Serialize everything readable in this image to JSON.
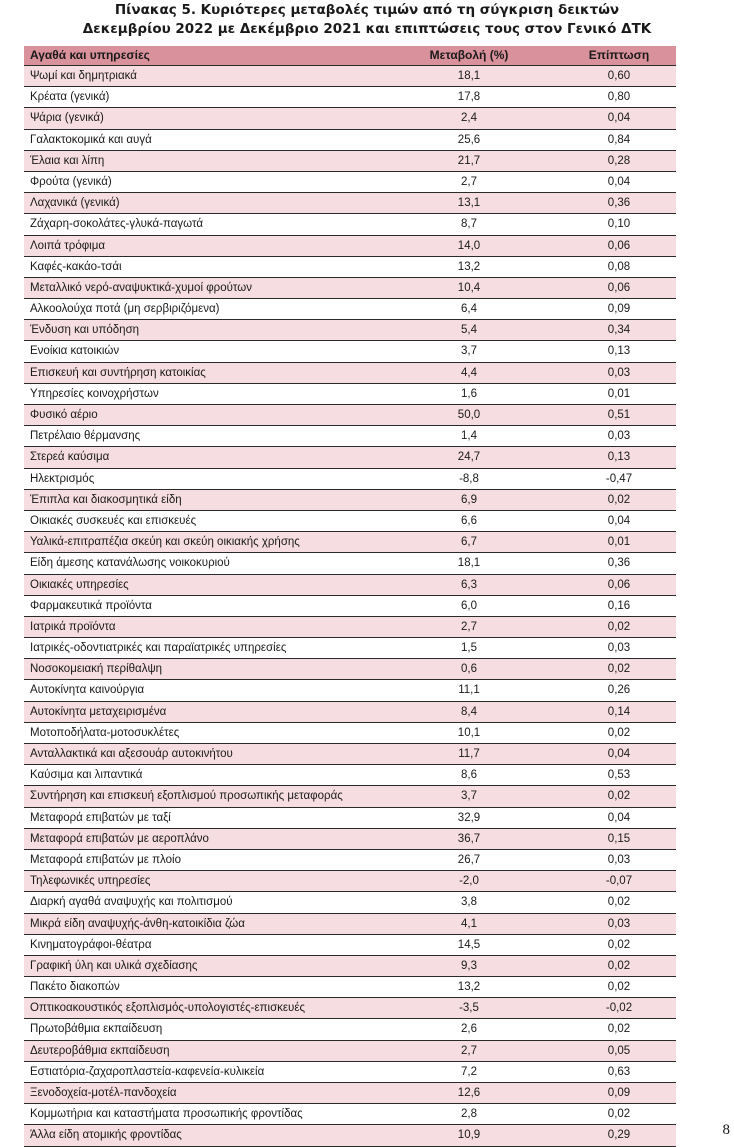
{
  "title_line1": "Πίνακας 5. Κυριότερες μεταβολές τιμών από τη σύγκριση δεικτών",
  "title_line2": "Δεκεμβρίου 2022 με Δεκέμβριο 2021 και επιπτώσεις τους στον Γενικό ΔΤΚ",
  "headers": {
    "name": "Αγαθά και υπηρεσίες",
    "change": "Μεταβολή (%)",
    "impact": "Επίπτωση"
  },
  "rows": [
    {
      "name": "Ψωμί και δημητριακά",
      "change": "18,1",
      "impact": "0,60"
    },
    {
      "name": "Κρέατα (γενικά)",
      "change": "17,8",
      "impact": "0,80"
    },
    {
      "name": "Ψάρια (γενικά)",
      "change": "2,4",
      "impact": "0,04"
    },
    {
      "name": "Γαλακτοκομικά και αυγά",
      "change": "25,6",
      "impact": "0,84"
    },
    {
      "name": "Έλαια και λίπη",
      "change": "21,7",
      "impact": "0,28"
    },
    {
      "name": "Φρούτα (γενικά)",
      "change": "2,7",
      "impact": "0,04"
    },
    {
      "name": "Λαχανικά (γενικά)",
      "change": "13,1",
      "impact": "0,36"
    },
    {
      "name": "Ζάχαρη-σοκολάτες-γλυκά-παγωτά",
      "change": "8,7",
      "impact": "0,10"
    },
    {
      "name": "Λοιπά τρόφιμα",
      "change": "14,0",
      "impact": "0,06"
    },
    {
      "name": "Καφές-κακάο-τσάι",
      "change": "13,2",
      "impact": "0,08"
    },
    {
      "name": "Μεταλλικό νερό-αναψυκτικά-χυμοί φρούτων",
      "change": "10,4",
      "impact": "0,06"
    },
    {
      "name": "Αλκοολούχα ποτά (μη σερβιριζόμενα)",
      "change": "6,4",
      "impact": "0,09"
    },
    {
      "name": "Ένδυση και υπόδηση",
      "change": "5,4",
      "impact": "0,34"
    },
    {
      "name": "Ενοίκια κατοικιών",
      "change": "3,7",
      "impact": "0,13"
    },
    {
      "name": "Επισκευή και συντήρηση κατοικίας",
      "change": "4,4",
      "impact": "0,03"
    },
    {
      "name": "Υπηρεσίες κοινοχρήστων",
      "change": "1,6",
      "impact": "0,01"
    },
    {
      "name": "Φυσικό αέριο",
      "change": "50,0",
      "impact": "0,51"
    },
    {
      "name": "Πετρέλαιο θέρμανσης",
      "change": "1,4",
      "impact": "0,03"
    },
    {
      "name": "Στερεά καύσιμα",
      "change": "24,7",
      "impact": "0,13"
    },
    {
      "name": "Ηλεκτρισμός",
      "change": "-8,8",
      "impact": "-0,47"
    },
    {
      "name": "Έπιπλα και διακοσμητικά είδη",
      "change": "6,9",
      "impact": "0,02"
    },
    {
      "name": "Οικιακές συσκευές και επισκευές",
      "change": "6,6",
      "impact": "0,04"
    },
    {
      "name": "Υαλικά-επιτραπέζια σκεύη και σκεύη οικιακής χρήσης",
      "change": "6,7",
      "impact": "0,01"
    },
    {
      "name": "Είδη άμεσης κατανάλωσης νοικοκυριού",
      "change": "18,1",
      "impact": "0,36"
    },
    {
      "name": "Οικιακές υπηρεσίες",
      "change": "6,3",
      "impact": "0,06"
    },
    {
      "name": "Φαρμακευτικά προϊόντα",
      "change": "6,0",
      "impact": "0,16"
    },
    {
      "name": "Ιατρικά προϊόντα",
      "change": "2,7",
      "impact": "0,02"
    },
    {
      "name": "Ιατρικές-οδοντιατρικές και παραϊατρικές υπηρεσίες",
      "change": "1,5",
      "impact": "0,03"
    },
    {
      "name": "Νοσοκομειακή περίθαλψη",
      "change": "0,6",
      "impact": "0,02"
    },
    {
      "name": "Αυτοκίνητα καινούργια",
      "change": "11,1",
      "impact": "0,26"
    },
    {
      "name": "Αυτοκίνητα μεταχειρισμένα",
      "change": "8,4",
      "impact": "0,14"
    },
    {
      "name": "Μοτοποδήλατα-μοτοσυκλέτες",
      "change": "10,1",
      "impact": "0,02"
    },
    {
      "name": "Ανταλλακτικά και αξεσουάρ αυτοκινήτου",
      "change": "11,7",
      "impact": "0,04"
    },
    {
      "name": "Καύσιμα και λιπαντικά",
      "change": "8,6",
      "impact": "0,53"
    },
    {
      "name": "Συντήρηση και επισκευή εξοπλισμού προσωπικής μεταφοράς",
      "change": "3,7",
      "impact": "0,02"
    },
    {
      "name": "Μεταφορά επιβατών με ταξί",
      "change": "32,9",
      "impact": "0,04"
    },
    {
      "name": "Μεταφορά επιβατών με αεροπλάνο",
      "change": "36,7",
      "impact": "0,15"
    },
    {
      "name": "Μεταφορά επιβατών με πλοίο",
      "change": "26,7",
      "impact": "0,03"
    },
    {
      "name": "Τηλεφωνικές υπηρεσίες",
      "change": "-2,0",
      "impact": "-0,07"
    },
    {
      "name": "Διαρκή αγαθά αναψυχής και πολιτισμού",
      "change": "3,8",
      "impact": "0,02"
    },
    {
      "name": "Μικρά είδη αναψυχής-άνθη-κατοικίδια ζώα",
      "change": "4,1",
      "impact": "0,03"
    },
    {
      "name": "Κινηματογράφοι-θέατρα",
      "change": "14,5",
      "impact": "0,02"
    },
    {
      "name": "Γραφική ύλη και υλικά σχεδίασης",
      "change": "9,3",
      "impact": "0,02"
    },
    {
      "name": "Πακέτο διακοπών",
      "change": "13,2",
      "impact": "0,02"
    },
    {
      "name": "Οπτικοακουστικός εξοπλισμός-υπολογιστές-επισκευές",
      "change": "-3,5",
      "impact": "-0,02"
    },
    {
      "name": "Πρωτοβάθμια εκπαίδευση",
      "change": "2,6",
      "impact": "0,02"
    },
    {
      "name": "Δευτεροβάθμια εκπαίδευση",
      "change": "2,7",
      "impact": "0,05"
    },
    {
      "name": "Εστιατόρια-ζαχαροπλαστεία-καφενεία-κυλικεία",
      "change": "7,2",
      "impact": "0,63"
    },
    {
      "name": "Ξενοδοχεία-μοτέλ-πανδοχεία",
      "change": "12,6",
      "impact": "0,09"
    },
    {
      "name": "Κομμωτήρια και καταστήματα προσωπικής φροντίδας",
      "change": "2,8",
      "impact": "0,02"
    },
    {
      "name": "Άλλα είδη ατομικής φροντίδας",
      "change": "10,9",
      "impact": "0,29"
    }
  ],
  "page_number": "8"
}
